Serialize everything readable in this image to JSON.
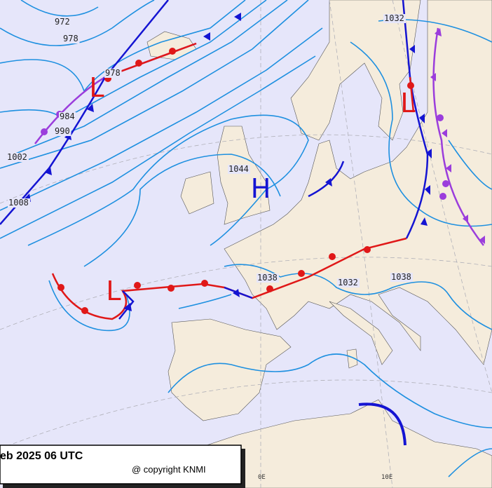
{
  "map": {
    "caption": "eb 2025 06 UTC",
    "copyright": "@ copyright KNMI",
    "isobar_labels": [
      "972",
      "978",
      "978",
      "984",
      "990",
      "1002",
      "1008",
      "1044",
      "1038",
      "1032",
      "1038",
      "1032"
    ],
    "centers": [
      "H",
      "L",
      "L",
      "L"
    ],
    "meridians": [
      "0E",
      "10E"
    ]
  }
}
